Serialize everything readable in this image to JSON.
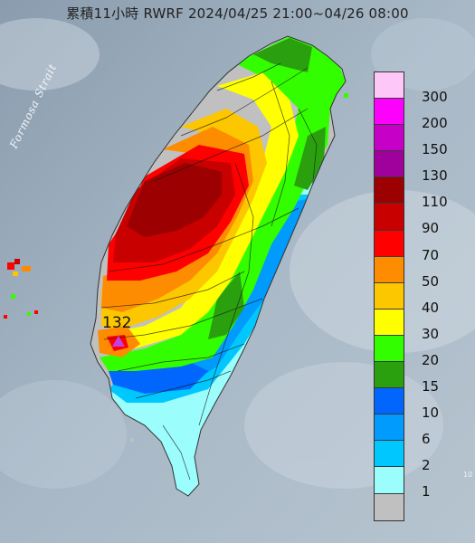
{
  "title": "累積11小時 RWRF 2024/04/25 21:00~04/26 08:00",
  "strait_label": "Formosa Strait",
  "max_station": {
    "value": "132",
    "marker_color": "#c040e0"
  },
  "legend": {
    "labels": [
      "300",
      "200",
      "150",
      "130",
      "110",
      "90",
      "70",
      "50",
      "40",
      "30",
      "20",
      "15",
      "10",
      "6",
      "2",
      "1"
    ],
    "colors": [
      "#fdc8f8",
      "#fc02fc",
      "#c700c8",
      "#a0009c",
      "#9d0000",
      "#c80000",
      "#fe0000",
      "#fd8c00",
      "#fdc700",
      "#ffff00",
      "#33fe00",
      "#2aa00f",
      "#0066fe",
      "#009bfd",
      "#00c8fe",
      "#9bfefd",
      "#c0c0c0"
    ]
  },
  "corner_text": "10"
}
